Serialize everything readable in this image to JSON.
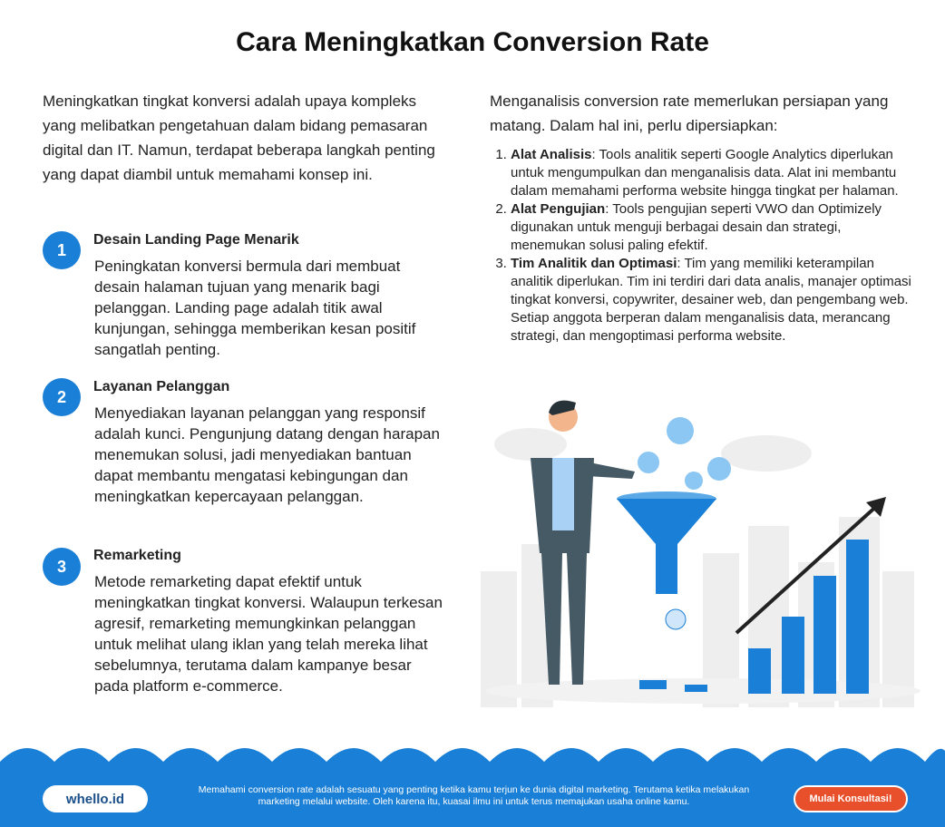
{
  "title": "Cara Meningkatkan Conversion Rate",
  "intro": "Meningkatkan tingkat konversi adalah upaya kompleks yang melibatkan pengetahuan dalam bidang pemasaran digital dan IT. Namun, terdapat beberapa langkah penting yang dapat diambil untuk memahami konsep ini.",
  "steps": [
    {
      "number": "1",
      "heading": "Desain Landing Page Menarik",
      "body": "Peningkatan konversi bermula dari membuat desain halaman tujuan yang menarik bagi pelanggan. Landing page adalah titik awal kunjungan, sehingga memberikan kesan positif sangatlah penting."
    },
    {
      "number": "2",
      "heading": "Layanan Pelanggan",
      "body": "Menyediakan layanan pelanggan yang responsif adalah kunci. Pengunjung datang dengan harapan menemukan solusi, jadi menyediakan bantuan dapat membantu mengatasi kebingungan dan meningkatkan kepercayaan pelanggan."
    },
    {
      "number": "3",
      "heading": "Remarketing",
      "body": "Metode remarketing dapat efektif untuk meningkatkan tingkat konversi. Walaupun terkesan agresif, remarketing memungkinkan pelanggan untuk melihat ulang iklan yang telah mereka lihat sebelumnya, terutama dalam kampanye besar pada platform e-commerce."
    }
  ],
  "right_intro": "Menganalisis conversion rate memerlukan persiapan yang matang. Dalam hal ini, perlu dipersiapkan:",
  "requirements": [
    {
      "label": "Alat Analisis",
      "text": ": Tools analitik seperti Google Analytics diperlukan untuk mengumpulkan dan menganalisis data. Alat ini membantu dalam memahami performa website hingga tingkat per halaman."
    },
    {
      "label": "Alat Pengujian",
      "text": ": Tools pengujian seperti VWO dan Optimizely digunakan untuk menguji berbagai desain dan strategi, menemukan solusi paling efektif."
    },
    {
      "label": "Tim Analitik dan Optimasi",
      "text": ": Tim yang memiliki keterampilan analitik diperlukan. Tim ini terdiri dari data analis, manajer optimasi tingkat konversi, copywriter, desainer web, dan pengembang web. Setiap anggota berperan dalam menganalisis data, merancang strategi, dan mengoptimasi performa website."
    }
  ],
  "footer": {
    "logo": "whello.id",
    "text": "Memahami conversion rate adalah sesuatu yang penting ketika kamu terjun ke dunia digital marketing. Terutama ketika melakukan marketing melalui website. Oleh karena itu, kuasai ilmu ini untuk terus memajukan usaha online kamu.",
    "button": "Mulai Konsultasi!"
  }
}
